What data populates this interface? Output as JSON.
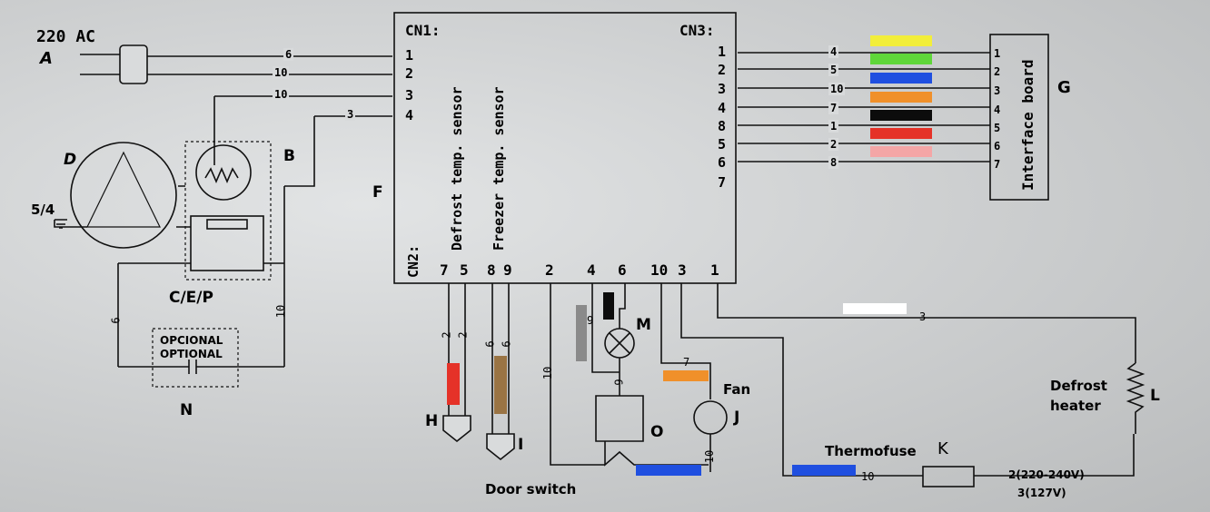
{
  "power": {
    "voltage": "220 AC",
    "label": "A"
  },
  "labels": {
    "B": "B",
    "D": "D",
    "F": "F",
    "G": "G",
    "H": "H",
    "I": "I",
    "J": "J",
    "K": "K",
    "L": "L",
    "M": "M",
    "N": "N",
    "O": "O",
    "cep": "C/E/P",
    "ground": "5/4"
  },
  "cn1": {
    "title": "CN1:",
    "pins": [
      "1",
      "2",
      "3",
      "4"
    ]
  },
  "cn1_wires": [
    "6",
    "10",
    "10",
    "3"
  ],
  "cn3": {
    "title": "CN3:",
    "pins": [
      "1",
      "2",
      "3",
      "4",
      "8",
      "5",
      "6",
      "7"
    ]
  },
  "cn3_wires": [
    {
      "num": "4",
      "color": "#f2ee3a"
    },
    {
      "num": "5",
      "color": "#5fd63a"
    },
    {
      "num": "10",
      "color": "#1f4fe0"
    },
    {
      "num": "7",
      "color": "#f0902a"
    },
    {
      "num": "1",
      "color": "#0c0c0c"
    },
    {
      "num": "2",
      "color": "#e53228"
    },
    {
      "num": "8",
      "color": "#f4a6a6"
    }
  ],
  "interface": {
    "title": "Interface board",
    "pins": [
      "1",
      "2",
      "3",
      "4",
      "5",
      "6",
      "7"
    ]
  },
  "cn2": {
    "title": "CN2:",
    "pins": [
      "7",
      "5",
      "8",
      "9",
      "2",
      "4",
      "6",
      "10",
      "3",
      "1"
    ]
  },
  "sensors": {
    "defrost": "Defrost temp. sensor",
    "freezer": "Freezer temp. sensor"
  },
  "sensor_wires": {
    "defrost": [
      "2",
      "2"
    ],
    "freezer": [
      "6",
      "6"
    ]
  },
  "optional": {
    "line1": "OPCIONAL",
    "line2": "OPTIONAL"
  },
  "wire_nums": {
    "cap_left": "6",
    "cap_right": "10",
    "lamp": "9",
    "lamp_low": "9",
    "fan": "7",
    "door": "10",
    "fan_low": "10",
    "heater": "3",
    "thermo": "10"
  },
  "fan_label": "Fan",
  "door_switch": "Door switch",
  "defrost_heater": {
    "line1": "Defrost",
    "line2": "heater"
  },
  "thermofuse": "Thermofuse",
  "voltage_notes": {
    "v1": "2(220-240V)",
    "v2": "3(127V)"
  }
}
